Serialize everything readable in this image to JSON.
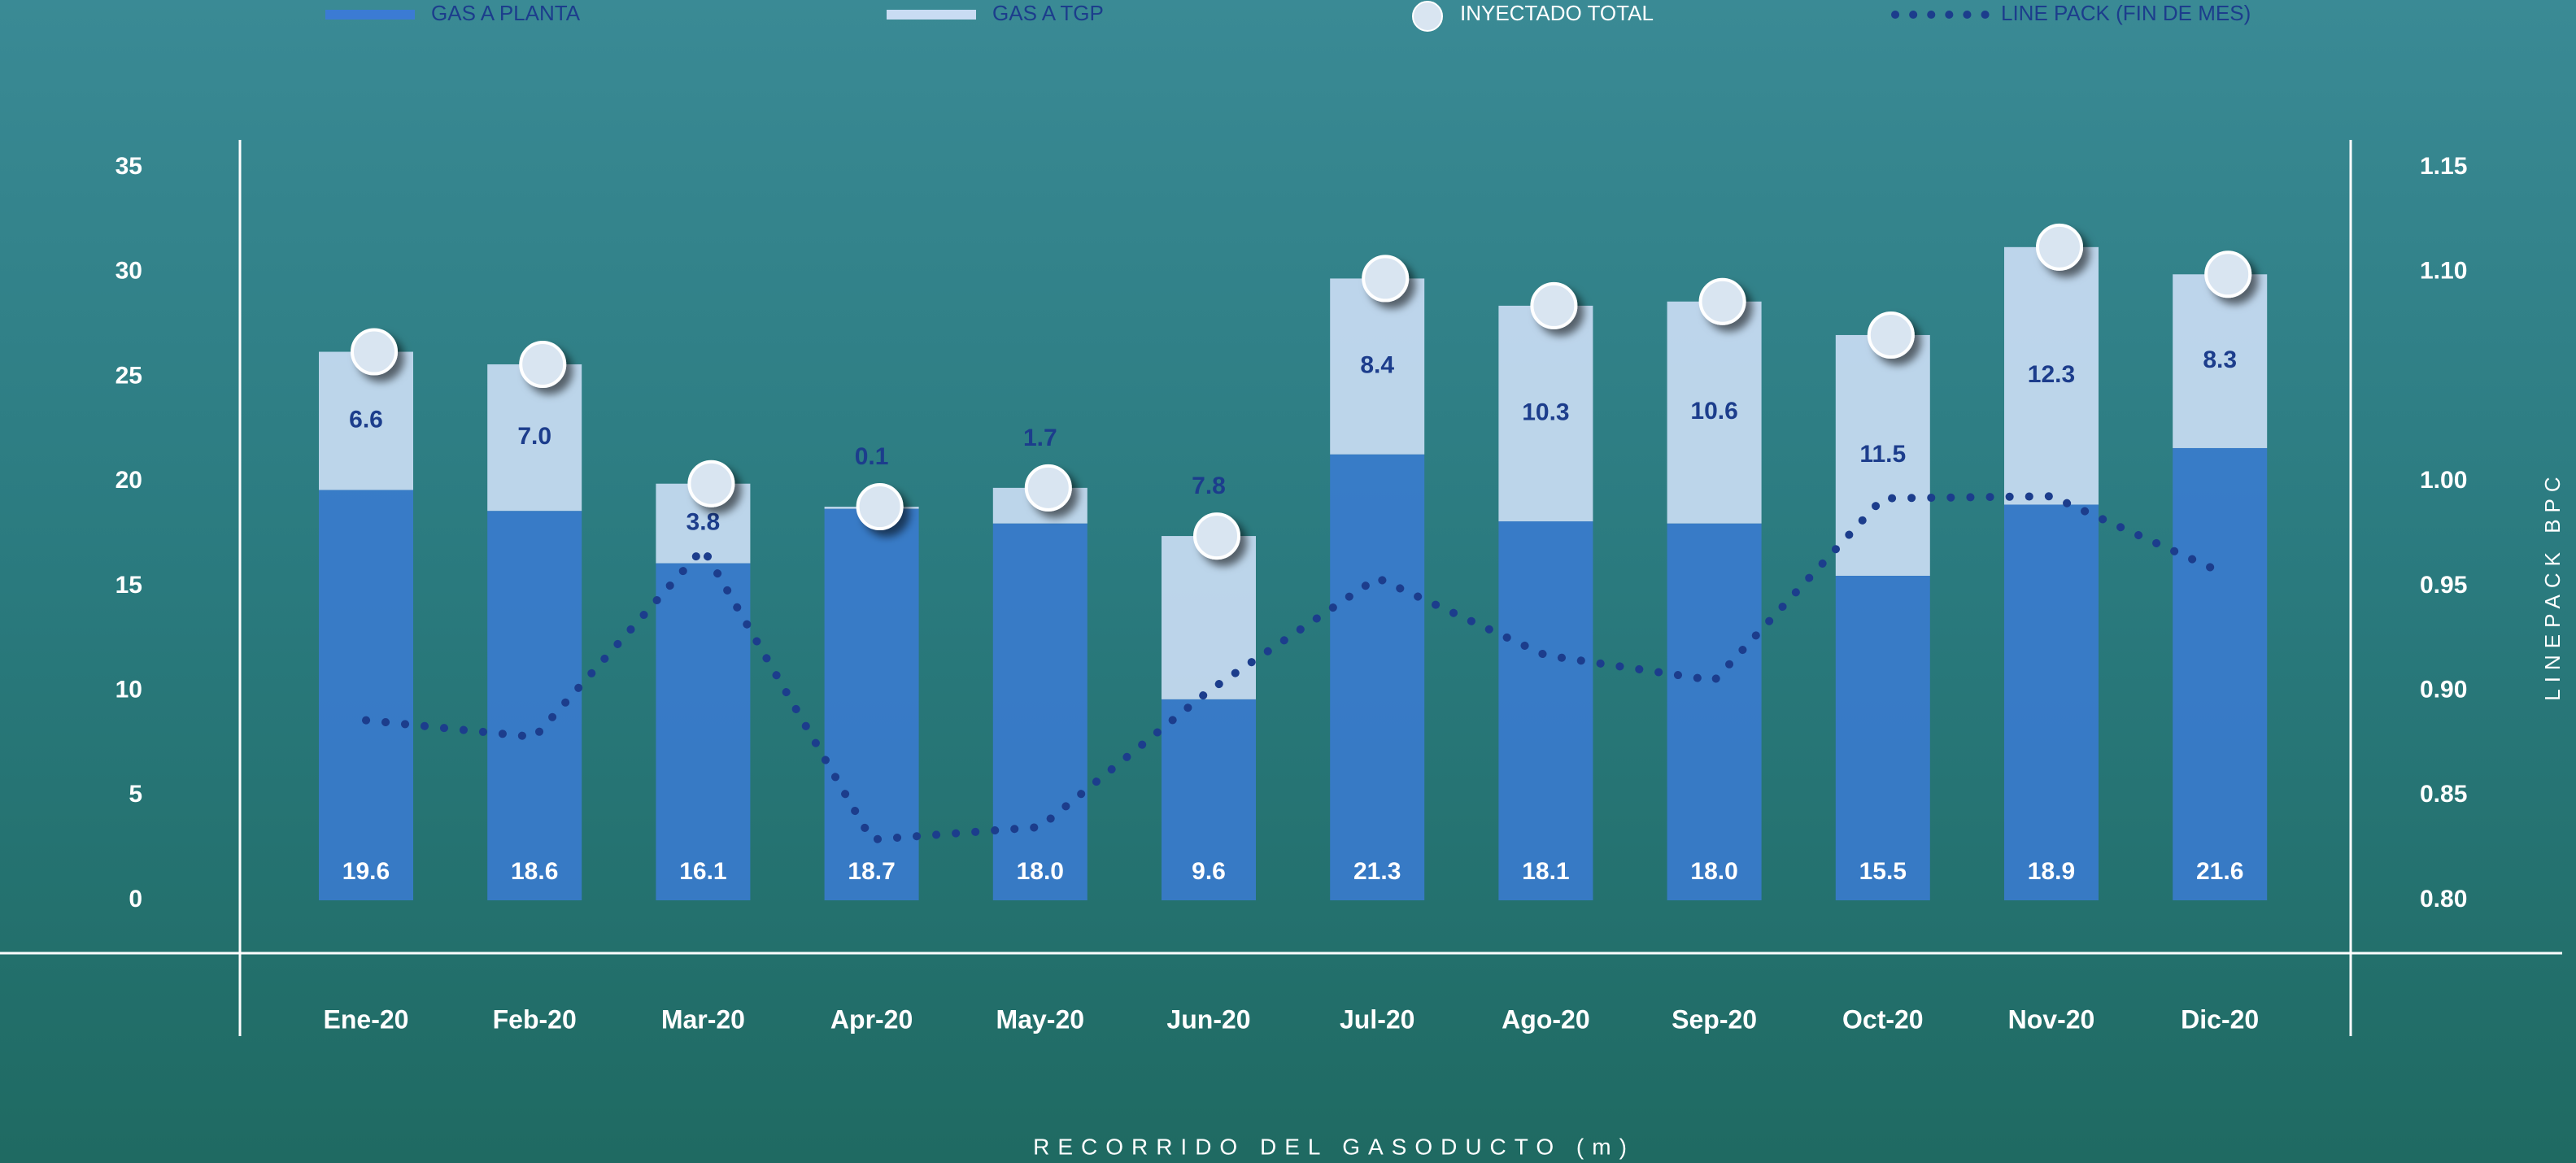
{
  "chart_data": {
    "type": "bar",
    "x_label": "RECORRIDO DEL GASODUCTO (m)",
    "y2_label": "LINEPACK BPC",
    "categories": [
      "Ene-20",
      "Feb-20",
      "Mar-20",
      "Apr-20",
      "May-20",
      "Jun-20",
      "Jul-20",
      "Ago-20",
      "Sep-20",
      "Oct-20",
      "Nov-20",
      "Dic-20"
    ],
    "ylim": [
      0,
      35
    ],
    "yticks": [
      0,
      5,
      10,
      15,
      20,
      25,
      30,
      35
    ],
    "y2lim": [
      0.8,
      1.15
    ],
    "y2ticks": [
      {
        "value": 0.8,
        "label": "0.80"
      },
      0.85,
      {
        "value": 0.9,
        "label": "0.90"
      },
      0.95,
      {
        "value": 1.0,
        "label": "1.00"
      },
      {
        "value": 1.1,
        "label": "1.10"
      },
      1.15
    ],
    "series": [
      {
        "name": "GAS A PLANTA",
        "color": "#3b7bd4",
        "type": "bar",
        "values": [
          19.6,
          18.6,
          16.1,
          18.7,
          18.0,
          9.6,
          21.3,
          18.1,
          18.0,
          15.5,
          18.9,
          21.6
        ],
        "value_labels": [
          "19.6",
          "18.6",
          "16.1",
          "18.7",
          "18.0",
          "9.6",
          "21.3",
          "18.1",
          "18.0",
          "15.5",
          "18.9",
          "21.6"
        ]
      },
      {
        "name": "GAS A TGP",
        "color": "#c9dcf3",
        "type": "bar",
        "values": [
          6.6,
          7.0,
          3.8,
          0.1,
          1.7,
          7.8,
          8.4,
          10.3,
          10.6,
          11.5,
          12.3,
          8.3
        ],
        "value_labels": [
          "6.6",
          "7.0",
          "3.8",
          "0.1",
          "1.7",
          "7.8",
          "8.4",
          "10.3",
          "10.6",
          "11.5",
          "12.3",
          "8.3"
        ]
      },
      {
        "name": "INYECTADO TOTAL",
        "color": "#d9e5f1",
        "type": "scatter",
        "values": [
          26.2,
          25.6,
          19.9,
          18.8,
          19.7,
          17.4,
          29.7,
          28.4,
          28.6,
          27.0,
          31.2,
          29.9
        ]
      },
      {
        "name": "LINE PACK (FIN DE MES)",
        "color": "#1c3d8c",
        "type": "line",
        "axis": "y2",
        "values": [
          0.886,
          0.878,
          0.968,
          0.829,
          0.835,
          0.9,
          0.954,
          0.917,
          0.905,
          0.992,
          0.993,
          0.957
        ]
      }
    ]
  }
}
